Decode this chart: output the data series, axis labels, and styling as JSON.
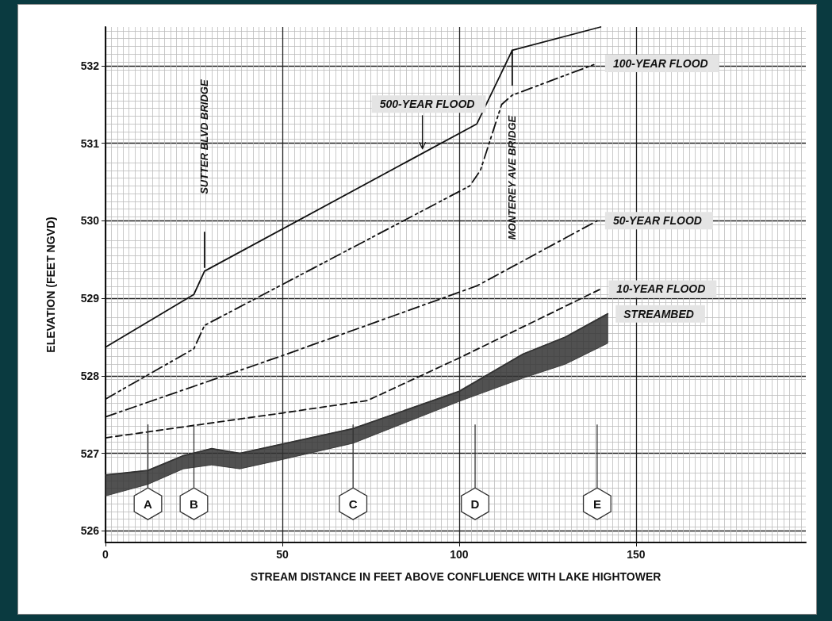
{
  "chart_data": {
    "type": "line",
    "xlabel": "STREAM DISTANCE IN FEET ABOVE CONFLUENCE WITH LAKE HIGHTOWER",
    "ylabel": "ELEVATION (FEET NGVD)",
    "xlim": [
      0,
      198
    ],
    "xticks": [
      0,
      50,
      100,
      150
    ],
    "ylim": [
      525.85,
      532.5
    ],
    "yticks": [
      526,
      527,
      528,
      529,
      530,
      531,
      532
    ],
    "grid": true,
    "legend": false,
    "marker": "none",
    "series": [
      {
        "name": "500-YEAR FLOOD",
        "color": "#111111",
        "line_style": "solid",
        "x": [
          0,
          25,
          28,
          105,
          115,
          140
        ],
        "values": [
          528.37,
          529.05,
          529.35,
          531.25,
          532.2,
          532.5
        ]
      },
      {
        "name": "100-YEAR FLOOD",
        "color": "#111111",
        "line_style": "dashdotdot",
        "x": [
          0,
          25,
          28,
          103,
          106,
          112,
          115,
          139
        ],
        "values": [
          527.7,
          528.35,
          528.65,
          530.45,
          530.65,
          531.5,
          531.62,
          532.03
        ]
      },
      {
        "name": "50-YEAR FLOOD",
        "color": "#111111",
        "line_style": "dashdot",
        "x": [
          0,
          50,
          105,
          139
        ],
        "values": [
          527.47,
          528.26,
          529.16,
          530.0
        ]
      },
      {
        "name": "10-YEAR FLOOD",
        "color": "#111111",
        "line_style": "dashed",
        "x": [
          0,
          50,
          74,
          100,
          140
        ],
        "values": [
          527.2,
          527.52,
          527.68,
          528.23,
          529.12
        ]
      },
      {
        "name": "STREAMBED",
        "color": "#333333",
        "line_style": "solid",
        "x": [
          0,
          12,
          22,
          30,
          38,
          50,
          70,
          100,
          118,
          130,
          142
        ],
        "values": [
          526.72,
          526.78,
          526.97,
          527.06,
          527.0,
          527.12,
          527.32,
          527.8,
          528.28,
          528.5,
          528.8
        ],
        "lower": [
          526.45,
          526.6,
          526.8,
          526.85,
          526.8,
          526.92,
          527.13,
          527.67,
          527.97,
          528.15,
          528.42
        ],
        "upper": [
          526.72,
          526.78,
          526.97,
          527.06,
          527.0,
          527.12,
          527.32,
          527.8,
          528.28,
          528.5,
          528.8
        ]
      },
      {
        "color": "#111111",
        "line_style": "solid",
        "x": [
          28,
          28
        ],
        "values": [
          529.4,
          529.85
        ]
      },
      {
        "color": "#111111",
        "line_style": "solid",
        "x": [
          115,
          115
        ],
        "values": [
          531.75,
          532.2
        ]
      }
    ],
    "annotations": [
      "SUTTER BLVD BRIDGE",
      "MONTEREY AVE BRIDGE",
      {
        "text": "A",
        "x": 12,
        "y": 526.35
      },
      {
        "text": "B",
        "x": 25,
        "y": 526.35
      },
      {
        "text": "C",
        "x": 70,
        "y": 526.35
      },
      {
        "text": "D",
        "x": 104.5,
        "y": 526.35
      },
      {
        "text": "E",
        "x": 139,
        "y": 526.35
      }
    ]
  }
}
